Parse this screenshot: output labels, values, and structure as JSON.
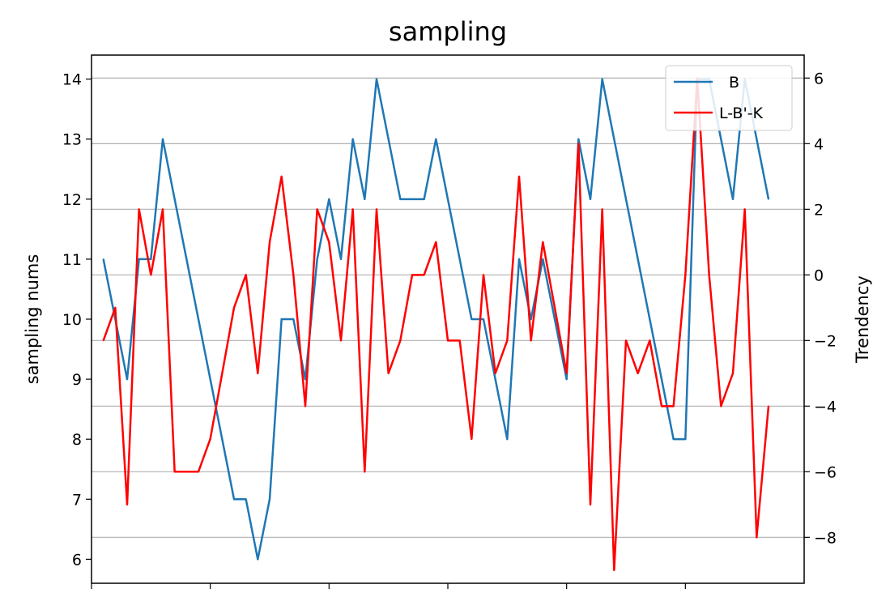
{
  "chart_data": {
    "type": "line",
    "title": "sampling",
    "ylabel": "sampling nums",
    "y2label": "Trendency",
    "grid": "horizontal gridlines on right axis",
    "legend_position": "top-right",
    "ylim": [
      5.6,
      14.4
    ],
    "y2lim": [
      -9.4,
      6.7
    ],
    "left_ticks": [
      6,
      7,
      8,
      9,
      10,
      11,
      12,
      13,
      14
    ],
    "right_ticks": [
      6,
      4,
      2,
      0,
      -2,
      -4,
      -6,
      -8
    ],
    "right_tick_labels": [
      "6",
      "4",
      "2",
      "0",
      "−2",
      "−4",
      "−6",
      "−8"
    ],
    "x": [
      0,
      1,
      2,
      3,
      4,
      5,
      6,
      7,
      8,
      9,
      10,
      11,
      12,
      13,
      14,
      15,
      16,
      17,
      18,
      19,
      20,
      21,
      22,
      23,
      24,
      25,
      26,
      27,
      28,
      29,
      30,
      31,
      32,
      33,
      34,
      35,
      36,
      37,
      38,
      39,
      40,
      41,
      42,
      43,
      44,
      45,
      46,
      47,
      48,
      49,
      50,
      51,
      52,
      53,
      54,
      55,
      56
    ],
    "xlim": [
      -1,
      59
    ],
    "xticks": [
      -1,
      9,
      19,
      29,
      39,
      49
    ],
    "series": [
      {
        "name": "B",
        "axis": "left",
        "color": "#1f77b4",
        "values": [
          11,
          10,
          9,
          11,
          11,
          13,
          12,
          11,
          10,
          9,
          8,
          7,
          7,
          6,
          7,
          10,
          10,
          9,
          11,
          12,
          11,
          13,
          12,
          14,
          13,
          12,
          12,
          12,
          13,
          12,
          11,
          10,
          10,
          9,
          8,
          11,
          10,
          11,
          10,
          9,
          13,
          12,
          14,
          13,
          12,
          11,
          10,
          9,
          8,
          8,
          14,
          14,
          13,
          12,
          14,
          13,
          12
        ]
      },
      {
        "name": "L-B'-K",
        "axis": "right",
        "color": "#ff0000",
        "values": [
          -2,
          -1,
          -7,
          2,
          0,
          2,
          -6,
          -6,
          -6,
          -5,
          -3,
          -1,
          0,
          -3,
          1,
          3,
          0,
          -4,
          2,
          1,
          -2,
          2,
          -6,
          2,
          -3,
          -2,
          0,
          0,
          1,
          -2,
          -2,
          -5,
          0,
          -3,
          -2,
          3,
          -2,
          1,
          -1,
          -3,
          4,
          -7,
          2,
          -9,
          -2,
          -3,
          -2,
          -4,
          -4,
          0,
          6,
          0,
          -4,
          -3,
          2,
          -8,
          -4
        ]
      }
    ]
  }
}
